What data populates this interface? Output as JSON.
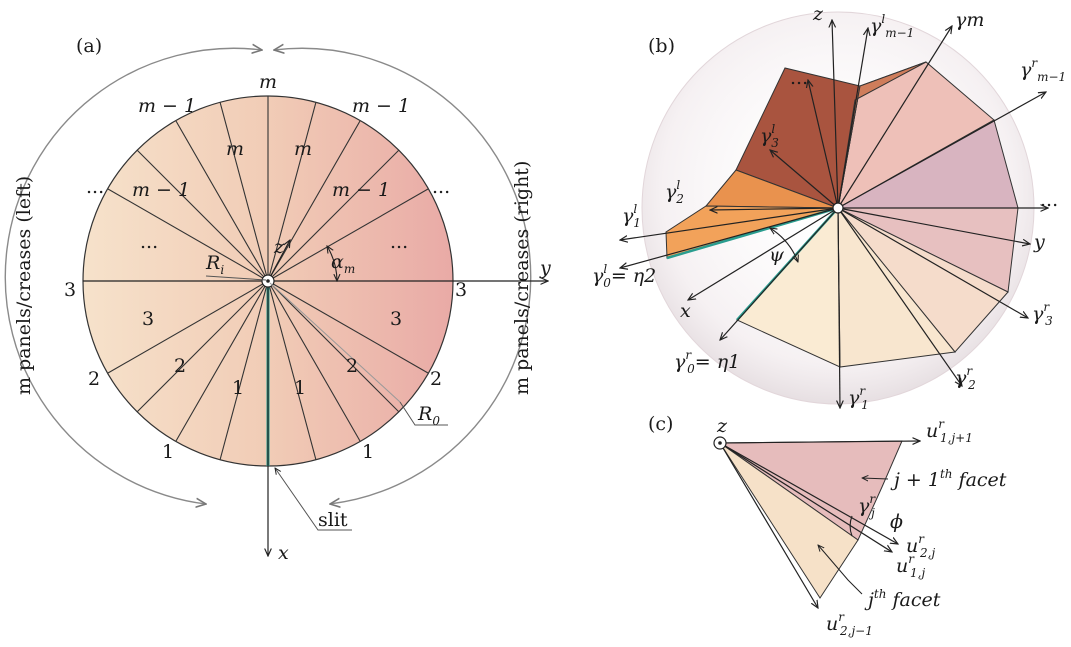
{
  "panels": {
    "a": {
      "label": "(a)"
    },
    "b": {
      "label": "(b)"
    },
    "c": {
      "label": "(c)"
    }
  },
  "disc": {
    "top_label": "m",
    "left_ring_labels": [
      "m − 1",
      "...",
      "3",
      "2",
      "1"
    ],
    "right_ring_labels": [
      "m − 1",
      "...",
      "3",
      "2",
      "1"
    ],
    "sector_labels": [
      "m",
      "m",
      "m − 1",
      "m − 1",
      "...",
      "...",
      "3",
      "3",
      "2",
      "2",
      "1",
      "1"
    ],
    "z_label": "z",
    "y_label": "y",
    "x_label": "x",
    "Ri_label": "R",
    "Ri_sub": "i",
    "R0_label": "R",
    "R0_sub": "0",
    "alpha_label": "α",
    "alpha_sub": "m",
    "slit_label": "slit",
    "left_caption": "m panels/creases (left)",
    "right_caption": "m panels/creases (right)"
  },
  "cone": {
    "z_label": "z",
    "y_label": "y",
    "x_label": "x",
    "psi_label": "ψ",
    "dots_top": "...",
    "dots_right": "...",
    "gamma_labels": {
      "g_m_minus_1_l": "γ",
      "g_m": "γm",
      "g_m_minus_1_r": "γ",
      "g3_l": "γ",
      "g2_l": "γ",
      "g1_l": "γ",
      "g0_l": "γ",
      "g3_r": "γ",
      "g2_r": "γ",
      "g1_r": "γ",
      "g0_r": "γ"
    },
    "eta2": "= η2",
    "eta1": "= η1"
  },
  "facet": {
    "z_label": "z",
    "u1_jp1": "u",
    "facet_j1": "j + 1",
    "facet_j1_suffix": "th",
    "facet_word": "facet",
    "gamma_j": "γ",
    "phi": "ϕ",
    "u2j": "u",
    "u1j": "u",
    "facet_j": "j",
    "facet_j_suffix": "th",
    "u2_jm1": "u"
  },
  "colors": {
    "disc_left": "#f5dcc6",
    "disc_right": "#eab0aa",
    "slit": "#2a9d8f",
    "orange": "#f1a055",
    "dark_brown": "#b45f4c",
    "pale_yellow": "#f9ead0",
    "mauve": "#d3a8b5"
  }
}
